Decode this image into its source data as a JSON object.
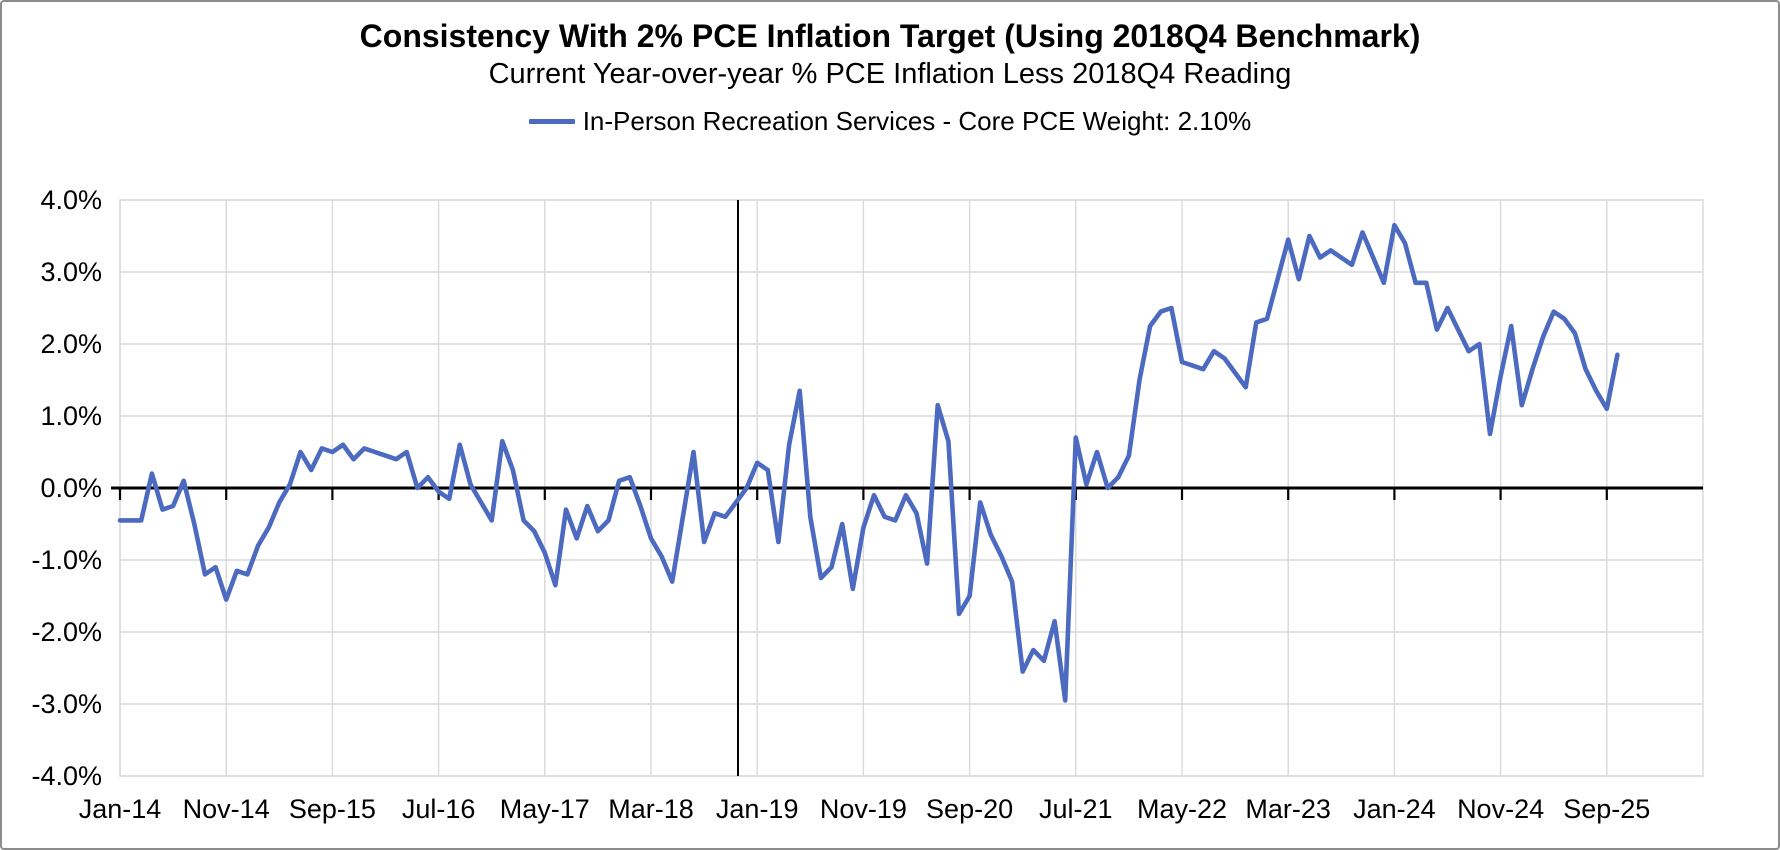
{
  "header": {
    "title": "Consistency With 2% PCE Inflation Target (Using 2018Q4 Benchmark)",
    "subtitle": "Current Year-over-year % PCE Inflation Less 2018Q4 Reading"
  },
  "legend": {
    "series_label": "In-Person Recreation Services - Core PCE Weight: 2.10%",
    "marker_color": "#4b6ac0"
  },
  "chart_data": {
    "type": "line",
    "title": "Consistency With 2% PCE Inflation Target (Using 2018Q4 Benchmark)",
    "subtitle": "Current Year-over-year % PCE Inflation Less 2018Q4 Reading",
    "unit": "%",
    "ylim": [
      -4.0,
      4.0
    ],
    "grid": true,
    "legend_position": "top-center",
    "y_tick_labels": [
      "4.0%",
      "3.0%",
      "2.0%",
      "1.0%",
      "0.0%",
      "-1.0%",
      "-2.0%",
      "-3.0%",
      "-4.0%"
    ],
    "x_tick_labels": [
      "Jan-14",
      "Nov-14",
      "Sep-15",
      "Jul-16",
      "May-17",
      "Mar-18",
      "Jan-19",
      "Nov-19",
      "Sep-20",
      "Jul-21",
      "May-22",
      "Mar-23",
      "Jan-24",
      "Nov-24",
      "Sep-25"
    ],
    "x_tick_interval_months": 10,
    "x_start_label": "Jan-14",
    "x_end_label": "Oct-25",
    "annotations": {
      "zero_axis_line": true,
      "vertical_benchmark_line_at": "Nov/Dec-18 (2018Q4)"
    },
    "colors": {
      "line": "#4b6ac0",
      "gridline": "#d9d9d9",
      "axis": "#000000",
      "text": "#000000"
    },
    "series": [
      {
        "name": "In-Person Recreation Services - Core PCE Weight: 2.10%",
        "frequency": "monthly",
        "values": [
          -0.45,
          -0.45,
          -0.45,
          0.2,
          -0.3,
          -0.25,
          0.1,
          -0.5,
          -1.2,
          -1.1,
          -1.55,
          -1.15,
          -1.2,
          -0.8,
          -0.55,
          -0.2,
          0.05,
          0.5,
          0.25,
          0.55,
          0.5,
          0.6,
          0.4,
          0.55,
          0.5,
          0.45,
          0.4,
          0.5,
          0.0,
          0.15,
          -0.05,
          -0.15,
          0.6,
          0.05,
          -0.2,
          -0.45,
          0.65,
          0.25,
          -0.45,
          -0.6,
          -0.9,
          -1.35,
          -0.3,
          -0.7,
          -0.25,
          -0.6,
          -0.45,
          0.1,
          0.15,
          -0.25,
          -0.7,
          -0.95,
          -1.3,
          -0.4,
          0.5,
          -0.75,
          -0.35,
          -0.4,
          -0.2,
          0.0,
          0.35,
          0.25,
          -0.75,
          0.6,
          1.35,
          -0.4,
          -1.25,
          -1.1,
          -0.5,
          -1.4,
          -0.55,
          -0.1,
          -0.4,
          -0.45,
          -0.1,
          -0.35,
          -1.05,
          1.15,
          0.65,
          -1.75,
          -1.5,
          -0.2,
          -0.65,
          -0.95,
          -1.3,
          -2.55,
          -2.25,
          -2.4,
          -1.85,
          -2.95,
          0.7,
          0.05,
          0.5,
          0.0,
          0.15,
          0.45,
          1.5,
          2.25,
          2.45,
          2.5,
          1.75,
          1.7,
          1.65,
          1.9,
          1.8,
          1.6,
          1.4,
          2.3,
          2.35,
          2.9,
          3.45,
          2.9,
          3.5,
          3.2,
          3.3,
          3.2,
          3.1,
          3.55,
          3.2,
          2.85,
          3.65,
          3.4,
          2.85,
          2.85,
          2.2,
          2.5,
          2.2,
          1.9,
          2.0,
          0.75,
          1.55,
          2.25,
          1.15,
          1.65,
          2.1,
          2.45,
          2.35,
          2.15,
          1.65,
          1.35,
          1.1,
          1.85
        ]
      }
    ]
  }
}
